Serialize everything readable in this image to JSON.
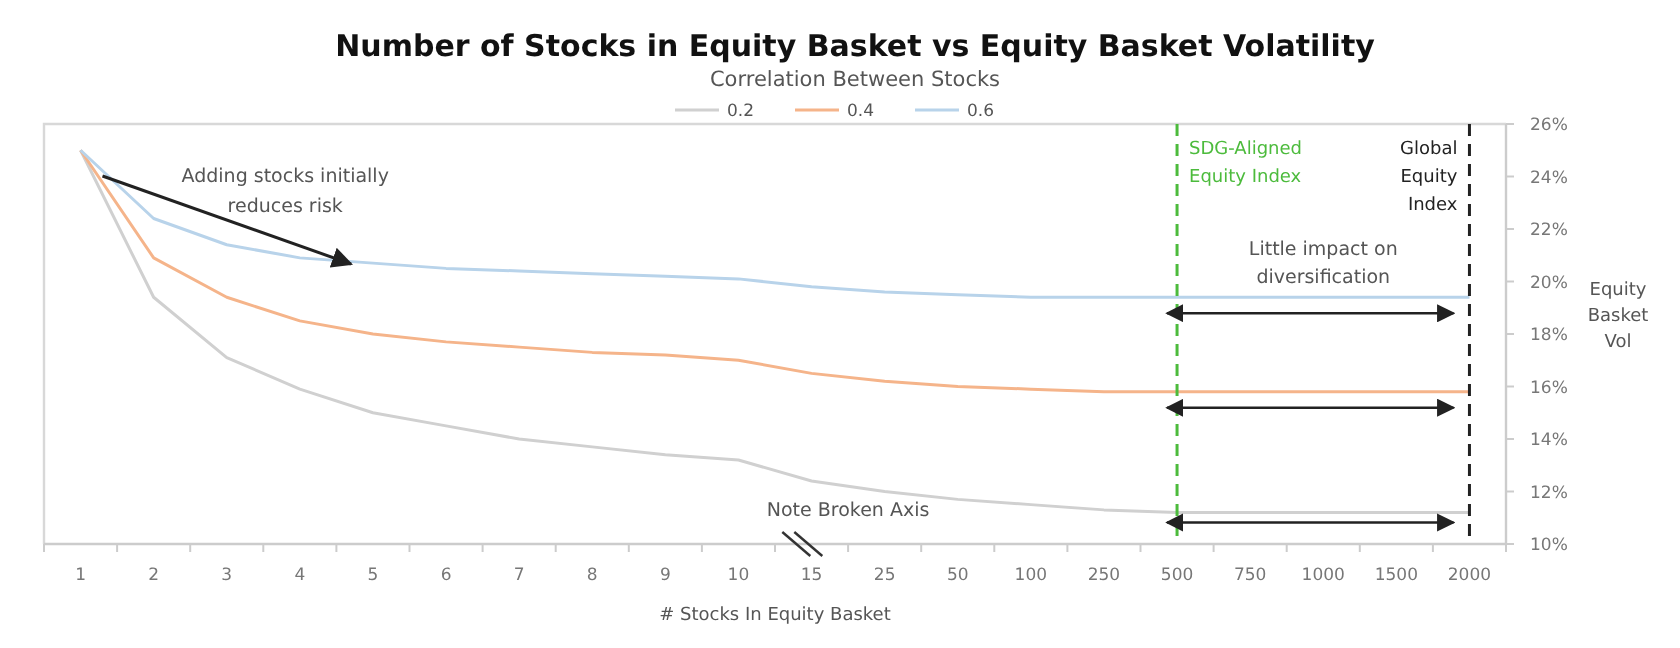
{
  "chart_data": {
    "type": "line",
    "title": "Number of Stocks in Equity Basket vs Equity Basket Volatility",
    "xlabel": "# Stocks In Equity Basket",
    "ylabel": "Equity Basket Vol",
    "legend_title": "Correlation Between Stocks",
    "categories": [
      "1",
      "2",
      "3",
      "4",
      "5",
      "6",
      "7",
      "8",
      "9",
      "10",
      "15",
      "25",
      "50",
      "100",
      "250",
      "500",
      "750",
      "1000",
      "1500",
      "2000"
    ],
    "series": [
      {
        "name": "0.2",
        "color": "#d0d0d0",
        "values": [
          25,
          19.4,
          17.1,
          15.9,
          15.0,
          14.5,
          14.0,
          13.7,
          13.4,
          13.2,
          12.4,
          12.0,
          11.7,
          11.5,
          11.3,
          11.2,
          11.2,
          11.2,
          11.2,
          11.2
        ]
      },
      {
        "name": "0.4",
        "color": "#f5b48a",
        "values": [
          25,
          20.9,
          19.4,
          18.5,
          18.0,
          17.7,
          17.5,
          17.3,
          17.2,
          17.0,
          16.5,
          16.2,
          16.0,
          15.9,
          15.8,
          15.8,
          15.8,
          15.8,
          15.8,
          15.8
        ]
      },
      {
        "name": "0.6",
        "color": "#b8d3ea",
        "values": [
          25,
          22.4,
          21.4,
          20.9,
          20.7,
          20.5,
          20.4,
          20.3,
          20.2,
          20.1,
          19.8,
          19.6,
          19.5,
          19.4,
          19.4,
          19.4,
          19.4,
          19.4,
          19.4,
          19.4
        ]
      }
    ],
    "ylim": [
      10,
      26
    ],
    "yticks": [
      {
        "value": 10,
        "label": "10%"
      },
      {
        "value": 12,
        "label": "12%"
      },
      {
        "value": 14,
        "label": "14%"
      },
      {
        "value": 16,
        "label": "16%"
      },
      {
        "value": 18,
        "label": "18%"
      },
      {
        "value": 20,
        "label": "20%"
      },
      {
        "value": 22,
        "label": "22%"
      },
      {
        "value": 24,
        "label": "24%"
      },
      {
        "value": 26,
        "label": "26%"
      }
    ],
    "ref_lines": [
      {
        "axis": "x",
        "value": "500",
        "label": "SDG-Aligned Equity Index",
        "color": "#4cbb3c",
        "line_style": "dashed"
      },
      {
        "axis": "x",
        "value": "2000",
        "label": "Global Equity Index",
        "color": "#222222",
        "line_style": "dashed"
      }
    ],
    "annotations": [
      "Adding stocks initially reduces risk",
      "Little impact on diversification",
      "Note Broken Axis"
    ],
    "legend": "top",
    "grid": false,
    "marker": "none",
    "line_style": "solid"
  }
}
